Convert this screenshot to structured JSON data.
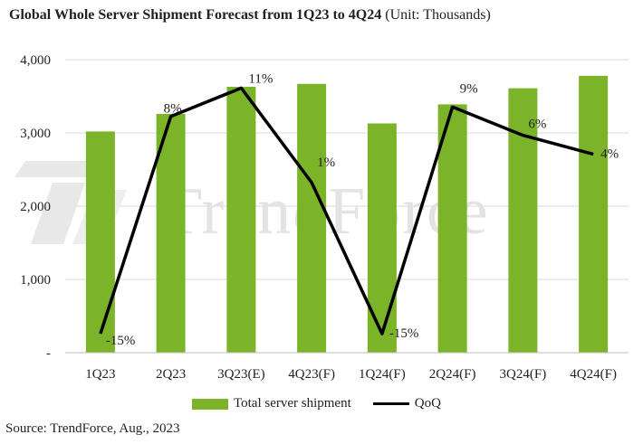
{
  "title_bold": "Global Whole Server Shipment Forecast from 1Q23 to 4Q24",
  "title_unit": "(Unit: Thousands)",
  "watermark": "TrendForce",
  "source": "Source: TrendForce, Aug., 2023",
  "colors": {
    "bar": "#7cb429",
    "line": "#000000"
  },
  "chart_data": {
    "type": "bar",
    "categories": [
      "1Q23",
      "2Q23",
      "3Q23(E)",
      "4Q23(F)",
      "1Q24(F)",
      "2Q24(F)",
      "3Q24(F)",
      "4Q24(F)"
    ],
    "series": [
      {
        "name": "Total server shipment",
        "type": "bar",
        "values": [
          3020,
          3260,
          3630,
          3670,
          3130,
          3390,
          3610,
          3780
        ]
      },
      {
        "name": "QoQ",
        "type": "line",
        "values": [
          -15,
          8,
          11,
          1,
          -15,
          9,
          6,
          4
        ],
        "unit": "%"
      }
    ],
    "point_labels": [
      "-15%",
      "8%",
      "11%",
      "1%",
      "-15%",
      "9%",
      "6%",
      "4%"
    ],
    "y_ticks": [
      "-",
      "1,000",
      "2,000",
      "3,000",
      "4,000"
    ],
    "ylim": [
      0,
      4000
    ],
    "qoq_range": [
      -17,
      14
    ],
    "grid": true,
    "legend_position": "bottom"
  }
}
